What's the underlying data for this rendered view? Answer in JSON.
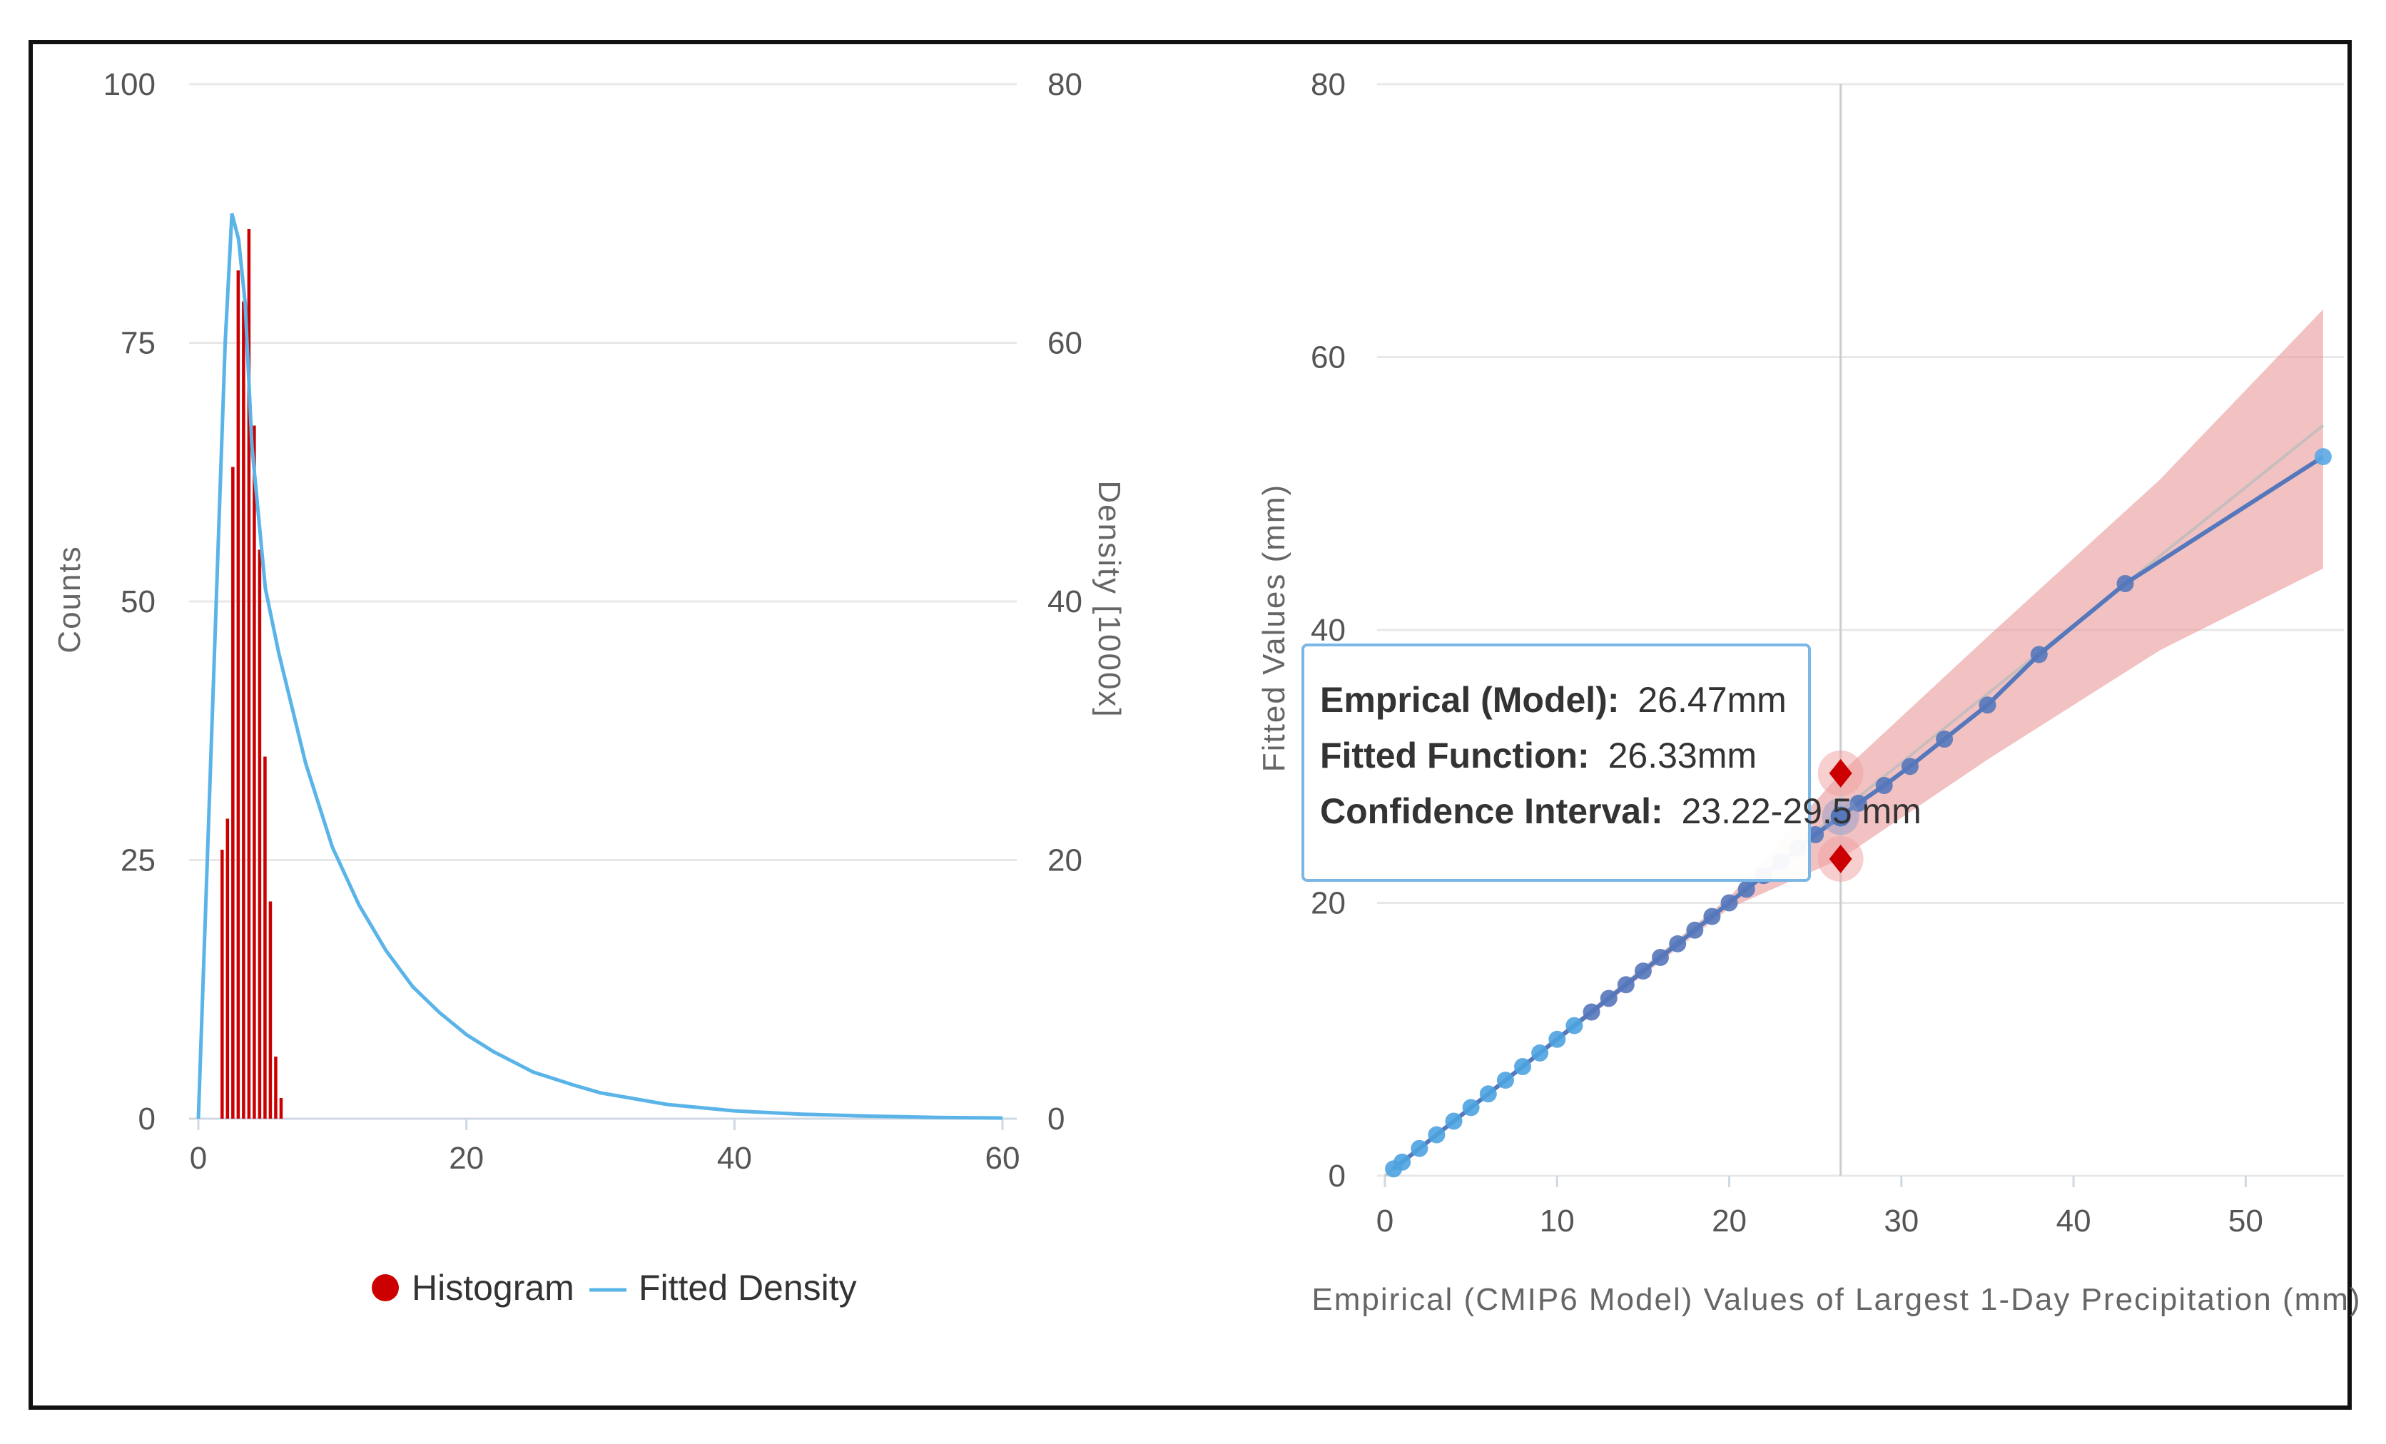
{
  "chart_data": [
    {
      "type": "bar",
      "name": "histogram-density-chart",
      "yaxis_left": {
        "title": "Counts",
        "ticks": [
          0,
          25,
          50,
          75,
          100
        ],
        "range": [
          0,
          100
        ]
      },
      "yaxis_right": {
        "title": "Density [1000x]",
        "ticks": [
          0,
          20,
          40,
          60,
          80
        ],
        "range": [
          0,
          80
        ]
      },
      "xaxis": {
        "ticks": [
          0,
          20,
          40,
          60
        ],
        "range": [
          0,
          60
        ]
      },
      "series": [
        {
          "name": "Histogram",
          "type": "bar",
          "color": "#cc0000",
          "bins": [
            {
              "x0": 1.6,
              "x1": 2.0,
              "count": 26
            },
            {
              "x0": 2.0,
              "x1": 2.4,
              "count": 29
            },
            {
              "x0": 2.4,
              "x1": 2.8,
              "count": 63
            },
            {
              "x0": 2.8,
              "x1": 3.2,
              "count": 82
            },
            {
              "x0": 3.2,
              "x1": 3.6,
              "count": 79
            },
            {
              "x0": 3.6,
              "x1": 4.0,
              "count": 86
            },
            {
              "x0": 4.0,
              "x1": 4.4,
              "count": 67
            },
            {
              "x0": 4.4,
              "x1": 4.8,
              "count": 55
            },
            {
              "x0": 4.8,
              "x1": 5.2,
              "count": 35
            },
            {
              "x0": 5.2,
              "x1": 5.6,
              "count": 21
            },
            {
              "x0": 5.6,
              "x1": 6.0,
              "count": 6
            },
            {
              "x0": 6.0,
              "x1": 6.4,
              "count": 2
            }
          ]
        },
        {
          "name": "Fitted Density",
          "type": "line",
          "color": "#5ab4e8",
          "x": [
            0,
            1,
            2,
            2.5,
            3,
            3.5,
            4,
            5,
            6,
            8,
            10,
            12,
            14,
            16,
            18,
            20,
            22,
            25,
            28,
            30,
            35,
            40,
            45,
            50,
            55,
            60
          ],
          "y": [
            0,
            30,
            60,
            70,
            68,
            63,
            52,
            41,
            36,
            27.5,
            21,
            16.5,
            13,
            10.2,
            8.2,
            6.5,
            5.2,
            3.6,
            2.6,
            2.0,
            1.1,
            0.6,
            0.35,
            0.2,
            0.1,
            0.05
          ]
        }
      ],
      "legend": {
        "position": "bottom-center",
        "items": [
          "Histogram",
          "Fitted Density"
        ]
      }
    },
    {
      "type": "scatter",
      "name": "qq-plot-chart",
      "xlabel": "Empirical (CMIP6 Model) Values of Largest 1-Day Precipitation (mm)",
      "ylabel": "Fitted Values (mm)",
      "xaxis": {
        "ticks": [
          0,
          10,
          20,
          30,
          40,
          50
        ],
        "range": [
          0,
          55
        ]
      },
      "yaxis": {
        "ticks": [
          0,
          20,
          40,
          60,
          80
        ],
        "range": [
          0,
          80
        ]
      },
      "crosshair_x": 26.47,
      "series": [
        {
          "name": "Fitted Function",
          "color": "#5577bb",
          "x": [
            0.5,
            1,
            2,
            3,
            4,
            5,
            6,
            7,
            8,
            9,
            10,
            11,
            12,
            13,
            14,
            15,
            16,
            17,
            18,
            19,
            20,
            21,
            22,
            23,
            24,
            25,
            26.47,
            27.5,
            29,
            30.5,
            32.5,
            35,
            38,
            43,
            54.5
          ],
          "y": [
            0.5,
            1,
            2,
            3,
            4,
            5,
            6,
            7,
            8,
            9,
            10,
            11,
            12,
            13,
            14,
            15,
            16,
            17,
            18,
            19,
            20,
            21,
            22,
            23,
            24,
            25,
            26.33,
            27.3,
            28.6,
            30,
            32,
            34.5,
            38.2,
            43.4,
            52.7
          ]
        },
        {
          "name": "Reference 1:1",
          "color": "#bbbbbb",
          "x": [
            0,
            54.5
          ],
          "y": [
            0,
            55
          ]
        }
      ],
      "confidence_band": {
        "color": "#e89090",
        "x": [
          0,
          10,
          20,
          26.47,
          35,
          45,
          54.5
        ],
        "lower": [
          0,
          9.8,
          19.6,
          23.22,
          30.5,
          38.5,
          44.5
        ],
        "upper": [
          0,
          10.2,
          20.4,
          29.5,
          39.5,
          51.0,
          63.5
        ]
      },
      "highlight": {
        "x": 26.47,
        "y": 26.33,
        "lower": 23.22,
        "upper": 29.5
      },
      "tooltip": {
        "lines": [
          {
            "key": "Emprical (Model):",
            "value": "26.47mm"
          },
          {
            "key": "Fitted Function:",
            "value": "26.33mm"
          },
          {
            "key": "Confidence Interval:",
            "value": "23.22-29.5 mm"
          }
        ]
      }
    }
  ]
}
